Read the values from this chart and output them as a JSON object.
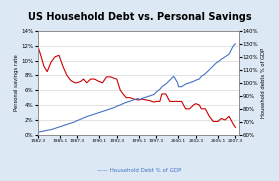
{
  "title": "US Household Debt vs. Personal Savings",
  "ylabel_left": "Personal savings rate",
  "ylabel_right": "Household debts % of GDP",
  "legend_label": "Household Debt % of GDP",
  "background_color": "#dce9f5",
  "plot_bg_color": "#ffffff",
  "x_labels": [
    "1982.3",
    "1985.1",
    "1987.3",
    "1990.1",
    "1992.3",
    "1995.1",
    "1997.3",
    "2000.1",
    "2002.3",
    "2005.1",
    "2007.3"
  ],
  "x_tick_vals": [
    1982.3,
    1985.1,
    1987.3,
    1990.1,
    1992.3,
    1995.1,
    1997.3,
    2000.1,
    2002.3,
    2005.1,
    2007.3
  ],
  "years": [
    1982.3,
    1982.75,
    1983.1,
    1983.5,
    1984.0,
    1984.5,
    1985.0,
    1985.5,
    1986.0,
    1986.5,
    1987.0,
    1987.3,
    1987.75,
    1988.1,
    1988.5,
    1989.0,
    1989.5,
    1990.0,
    1990.5,
    1991.0,
    1991.5,
    1992.0,
    1992.3,
    1992.75,
    1993.1,
    1993.5,
    1994.0,
    1994.5,
    1995.0,
    1995.1,
    1995.5,
    1996.0,
    1996.5,
    1997.0,
    1997.3,
    1997.75,
    1998.0,
    1998.5,
    1999.0,
    1999.5,
    2000.0,
    2000.1,
    2000.5,
    2001.0,
    2001.5,
    2002.0,
    2002.3,
    2002.75,
    2003.0,
    2003.5,
    2004.0,
    2004.5,
    2005.0,
    2005.1,
    2005.5,
    2006.0,
    2006.5,
    2007.0,
    2007.3
  ],
  "savings": [
    12.0,
    10.5,
    9.2,
    8.5,
    9.8,
    10.5,
    10.7,
    9.2,
    8.0,
    7.3,
    7.0,
    7.0,
    7.2,
    7.5,
    7.0,
    7.5,
    7.5,
    7.2,
    7.0,
    7.8,
    7.8,
    7.6,
    7.5,
    6.0,
    5.5,
    5.0,
    5.0,
    4.8,
    4.7,
    4.7,
    4.8,
    4.7,
    4.6,
    4.4,
    4.5,
    4.5,
    5.5,
    5.5,
    4.5,
    4.5,
    4.5,
    4.5,
    4.5,
    3.5,
    3.5,
    4.0,
    4.2,
    4.0,
    3.5,
    3.5,
    2.5,
    1.8,
    1.8,
    1.8,
    2.2,
    2.0,
    2.5,
    1.5,
    1.0
  ],
  "debt": [
    62,
    62.5,
    63,
    63.5,
    64,
    65,
    66,
    67,
    68,
    69,
    70,
    71,
    72,
    73,
    74,
    75,
    76,
    77,
    78,
    79,
    80,
    81,
    82,
    83,
    84,
    85,
    86,
    87,
    88,
    87,
    88,
    89,
    90,
    91,
    93,
    95,
    97,
    99,
    102,
    105,
    100,
    97,
    97,
    99,
    100,
    101,
    102,
    103,
    105,
    107,
    110,
    113,
    116,
    116,
    118,
    120,
    122,
    128,
    130
  ],
  "savings_color": "#cc0000",
  "debt_color": "#4472c4",
  "ylim_left": [
    0,
    14
  ],
  "ylim_right": [
    60,
    140
  ],
  "yticks_left": [
    0,
    2,
    4,
    6,
    8,
    10,
    12,
    14
  ],
  "yticks_right": [
    60,
    70,
    80,
    90,
    100,
    110,
    120,
    130,
    140
  ],
  "title_fontsize": 7,
  "axis_fontsize": 3.8,
  "tick_fontsize": 4.0,
  "legend_fontsize": 4.0
}
